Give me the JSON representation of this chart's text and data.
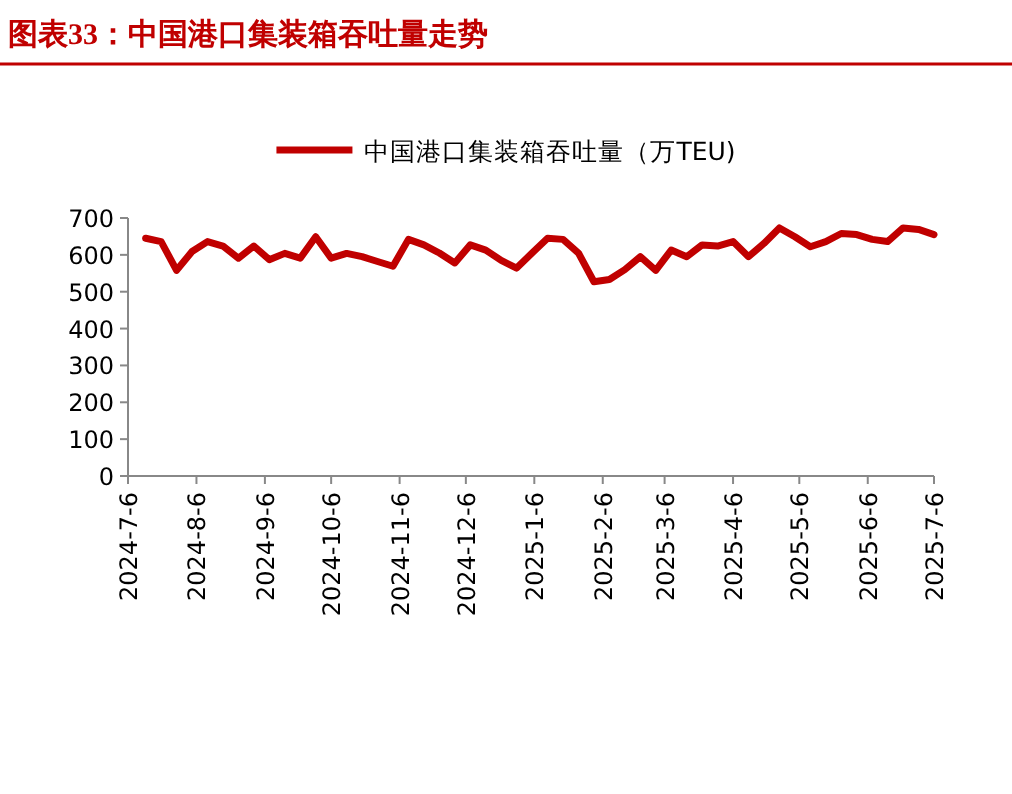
{
  "chart_data": {
    "type": "line",
    "title": "图表33：中国港口集装箱吞吐量走势",
    "x": [
      "2024-07-14",
      "2024-07-21",
      "2024-07-28",
      "2024-08-04",
      "2024-08-11",
      "2024-08-18",
      "2024-08-25",
      "2024-09-01",
      "2024-09-08",
      "2024-09-15",
      "2024-09-22",
      "2024-09-29",
      "2024-10-06",
      "2024-10-13",
      "2024-10-20",
      "2024-10-27",
      "2024-11-03",
      "2024-11-10",
      "2024-11-17",
      "2024-11-24",
      "2024-12-01",
      "2024-12-08",
      "2024-12-15",
      "2024-12-22",
      "2024-12-29",
      "2025-01-05",
      "2025-01-12",
      "2025-01-19",
      "2025-01-26",
      "2025-02-02",
      "2025-02-09",
      "2025-02-16",
      "2025-02-23",
      "2025-03-02",
      "2025-03-09",
      "2025-03-16",
      "2025-03-23",
      "2025-03-30",
      "2025-04-06",
      "2025-04-13",
      "2025-04-20",
      "2025-04-27",
      "2025-05-04",
      "2025-05-11",
      "2025-05-18",
      "2025-05-25",
      "2025-06-01",
      "2025-06-08",
      "2025-06-15",
      "2025-06-22",
      "2025-06-29",
      "2025-07-06"
    ],
    "series": [
      {
        "name": "中国港口集装箱吞吐量（万TEU)",
        "color": "#c00000",
        "values": [
          645,
          636,
          558,
          609,
          636,
          624,
          591,
          624,
          587,
          604,
          591,
          649,
          591,
          604,
          595,
          582,
          569,
          642,
          627,
          605,
          578,
          627,
          613,
          585,
          564,
          605,
          645,
          642,
          605,
          527,
          533,
          560,
          595,
          558,
          613,
          595,
          627,
          624,
          636,
          595,
          631,
          673,
          649,
          622,
          636,
          658,
          655,
          642,
          636,
          673,
          669,
          655
        ]
      }
    ],
    "xlim": [
      "2024-07-06",
      "2025-07-06"
    ],
    "xticks": [
      {
        "value": "2024-07-06",
        "label": "2024-7-6"
      },
      {
        "value": "2024-08-06",
        "label": "2024-8-6"
      },
      {
        "value": "2024-09-06",
        "label": "2024-9-6"
      },
      {
        "value": "2024-10-06",
        "label": "2024-10-6"
      },
      {
        "value": "2024-11-06",
        "label": "2024-11-6"
      },
      {
        "value": "2024-12-06",
        "label": "2024-12-6"
      },
      {
        "value": "2025-01-06",
        "label": "2025-1-6"
      },
      {
        "value": "2025-02-06",
        "label": "2025-2-6"
      },
      {
        "value": "2025-03-06",
        "label": "2025-3-6"
      },
      {
        "value": "2025-04-06",
        "label": "2025-4-6"
      },
      {
        "value": "2025-05-06",
        "label": "2025-5-6"
      },
      {
        "value": "2025-06-06",
        "label": "2025-6-6"
      },
      {
        "value": "2025-07-06",
        "label": "2025-7-6"
      }
    ],
    "ylim": [
      0,
      700
    ],
    "yticks": [
      0,
      100,
      200,
      300,
      400,
      500,
      600,
      700
    ],
    "legend": "top",
    "grid": false,
    "marker": "none",
    "line_style": "solid"
  }
}
